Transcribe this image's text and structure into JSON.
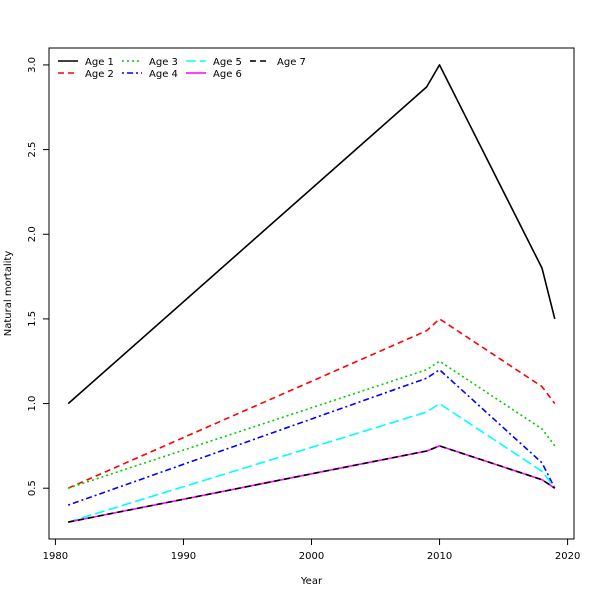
{
  "chart_data": {
    "type": "line",
    "title": "",
    "xlabel": "Year",
    "ylabel": "Natural mortality",
    "xlim": [
      1979.5,
      2020.5
    ],
    "ylim": [
      0.2,
      3.1
    ],
    "xticks": [
      1980,
      1990,
      2000,
      2010,
      2020
    ],
    "yticks": [
      0.5,
      1.0,
      1.5,
      2.0,
      2.5,
      3.0
    ],
    "xtick_labels": [
      "1980",
      "1990",
      "2000",
      "2010",
      "2020"
    ],
    "ytick_labels": [
      "0.5",
      "1.0",
      "1.5",
      "2.0",
      "2.5",
      "3.0"
    ],
    "grid": false,
    "legend_position": "top-left",
    "x": [
      1981,
      2009,
      2010,
      2018,
      2019
    ],
    "series": [
      {
        "name": "Age 1",
        "color": "#000000",
        "dash": "solid",
        "values": [
          1.0,
          2.87,
          3.0,
          1.8,
          1.5
        ]
      },
      {
        "name": "Age 2",
        "color": "#ff0000",
        "dash": "dashed",
        "values": [
          0.5,
          1.43,
          1.5,
          1.1,
          1.0
        ]
      },
      {
        "name": "Age 3",
        "color": "#00cd00",
        "dash": "dotted",
        "values": [
          0.5,
          1.2,
          1.25,
          0.85,
          0.75
        ]
      },
      {
        "name": "Age 4",
        "color": "#0000ff",
        "dash": "dotdash",
        "values": [
          0.4,
          1.15,
          1.2,
          0.65,
          0.5
        ]
      },
      {
        "name": "Age 5",
        "color": "#00ffff",
        "dash": "longdash",
        "values": [
          0.3,
          0.95,
          1.0,
          0.6,
          0.5
        ]
      },
      {
        "name": "Age 6",
        "color": "#ff00ff",
        "dash": "solid",
        "values": [
          0.3,
          0.72,
          0.75,
          0.55,
          0.5
        ]
      },
      {
        "name": "Age 7",
        "color": "#000000",
        "dash": "dashed",
        "values": [
          0.3,
          0.72,
          0.75,
          0.55,
          0.5
        ]
      }
    ]
  }
}
